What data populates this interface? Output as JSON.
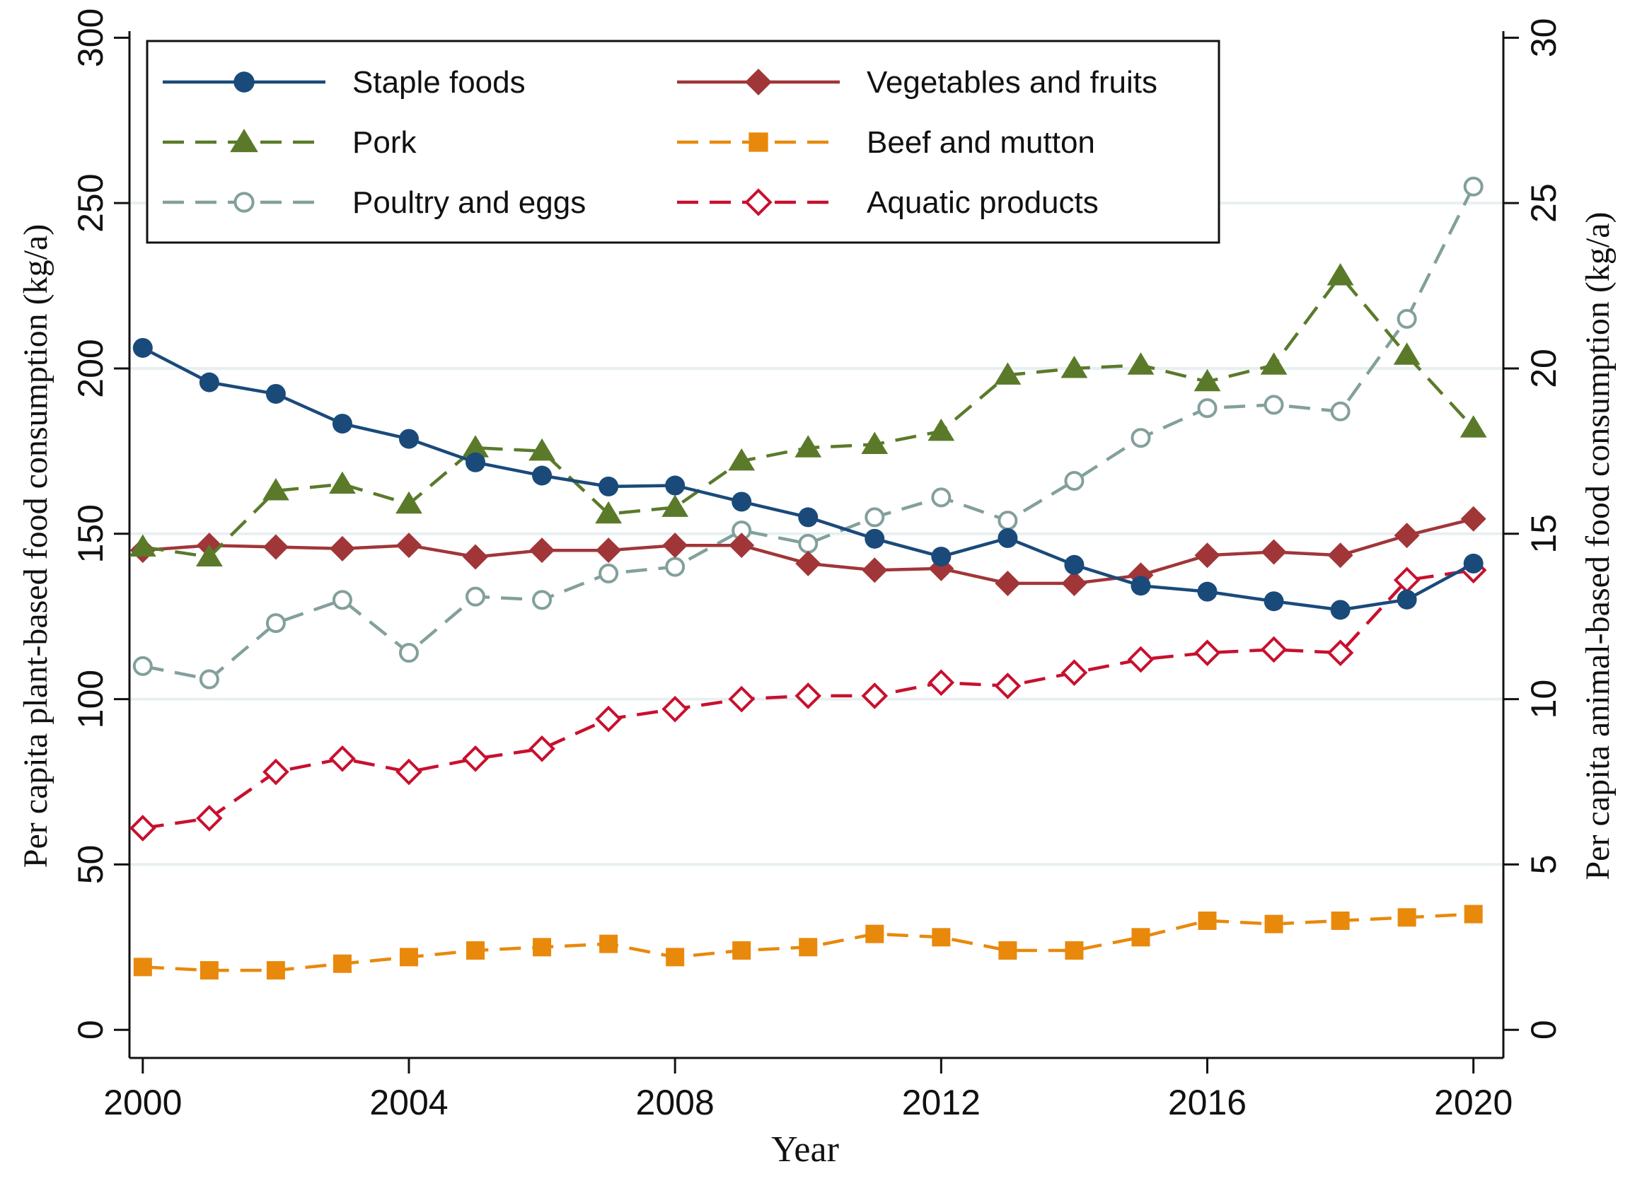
{
  "chart_data": {
    "type": "line",
    "x": [
      2000,
      2001,
      2002,
      2003,
      2004,
      2005,
      2006,
      2007,
      2008,
      2009,
      2010,
      2011,
      2012,
      2013,
      2014,
      2015,
      2016,
      2017,
      2018,
      2019,
      2020
    ],
    "xticks": [
      2000,
      2004,
      2008,
      2012,
      2016,
      2020
    ],
    "xlabel": "Year",
    "xlim": [
      1999.8,
      2020.45
    ],
    "y_left": {
      "label": "Per capita plant-based food consumption (kg/a)",
      "ticks": [
        0,
        50,
        100,
        150,
        200,
        250,
        300
      ],
      "lim": [
        -8.5,
        302
      ]
    },
    "y_right": {
      "label": "Per capita animal-based food consumption (kg/a)",
      "ticks": [
        0,
        5,
        10,
        15,
        20,
        25,
        30
      ],
      "lim": [
        -0.85,
        30.2
      ]
    },
    "gridlines": [
      50,
      100,
      150,
      200,
      250
    ],
    "legend_position": "top",
    "series": [
      {
        "name": "Staple foods",
        "axis": "left",
        "color": "#1a4a7a",
        "marker": "circle",
        "dash": "solid",
        "values": [
          206.2,
          195.8,
          192.3,
          183.3,
          178.7,
          171.6,
          167.6,
          164.3,
          164.6,
          159.7,
          155.0,
          148.5,
          143.1,
          148.7,
          140.6,
          134.3,
          132.5,
          129.6,
          127.0,
          130.1,
          141.0
        ]
      },
      {
        "name": "Vegetables and fruits",
        "axis": "left",
        "color": "#a03638",
        "marker": "diamond",
        "dash": "solid",
        "values": [
          145.0,
          146.5,
          146.0,
          145.5,
          146.5,
          143.0,
          145.0,
          145.0,
          146.5,
          146.5,
          141.0,
          139.0,
          139.5,
          135.0,
          135.0,
          137.5,
          143.5,
          144.5,
          143.5,
          149.5,
          154.5
        ]
      },
      {
        "name": "Pork",
        "axis": "right",
        "color": "#5a7a2a",
        "marker": "triangle",
        "dash": "dashed",
        "values": [
          14.6,
          14.3,
          16.3,
          16.5,
          15.9,
          17.6,
          17.5,
          15.6,
          15.8,
          17.2,
          17.6,
          17.7,
          18.1,
          19.8,
          20.0,
          20.1,
          19.6,
          20.1,
          22.8,
          20.4,
          18.2
        ]
      },
      {
        "name": "Beef and mutton",
        "axis": "right",
        "color": "#e8890c",
        "marker": "square",
        "dash": "dashed",
        "values": [
          1.9,
          1.8,
          1.8,
          2.0,
          2.2,
          2.4,
          2.5,
          2.6,
          2.2,
          2.4,
          2.5,
          2.9,
          2.8,
          2.4,
          2.4,
          2.8,
          3.3,
          3.2,
          3.3,
          3.4,
          3.5
        ]
      },
      {
        "name": "Poultry and eggs",
        "axis": "right",
        "color": "#82a09c",
        "marker": "circle-open",
        "dash": "dashed",
        "values": [
          11.0,
          10.6,
          12.3,
          13.0,
          11.4,
          13.1,
          13.0,
          13.8,
          14.0,
          15.1,
          14.7,
          15.5,
          16.1,
          15.4,
          16.6,
          17.9,
          18.8,
          18.9,
          18.7,
          21.5,
          25.5
        ]
      },
      {
        "name": "Aquatic products",
        "axis": "right",
        "color": "#c8102e",
        "marker": "diamond-open",
        "dash": "dashed",
        "values": [
          6.1,
          6.4,
          7.8,
          8.2,
          7.8,
          8.2,
          8.5,
          9.4,
          9.7,
          10.0,
          10.1,
          10.1,
          10.5,
          10.4,
          10.8,
          11.2,
          11.4,
          11.5,
          11.4,
          13.6,
          13.9
        ]
      }
    ]
  }
}
